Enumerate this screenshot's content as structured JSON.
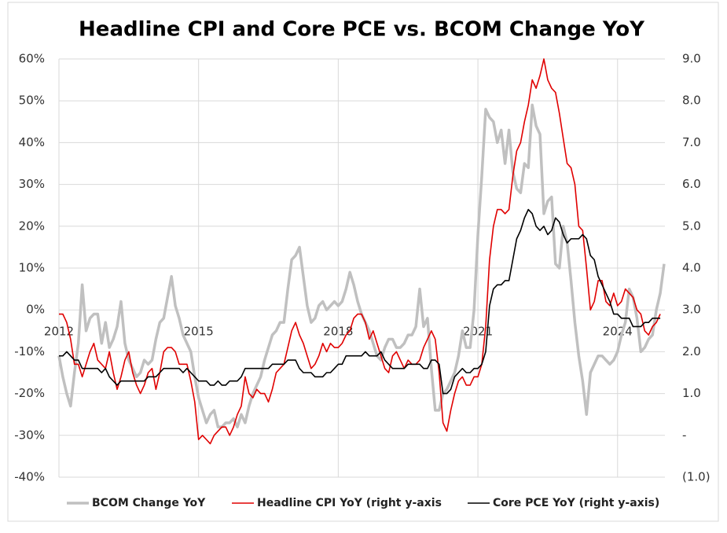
{
  "chart_data": {
    "type": "line",
    "title": "Headline CPI and Core PCE vs. BCOM Change YoY",
    "x": [
      2012,
      2012.083,
      2012.167,
      2012.25,
      2012.333,
      2012.417,
      2012.5,
      2012.583,
      2012.667,
      2012.75,
      2012.833,
      2012.917,
      2013,
      2013.083,
      2013.167,
      2013.25,
      2013.333,
      2013.417,
      2013.5,
      2013.583,
      2013.667,
      2013.75,
      2013.833,
      2013.917,
      2014,
      2014.083,
      2014.167,
      2014.25,
      2014.333,
      2014.417,
      2014.5,
      2014.583,
      2014.667,
      2014.75,
      2014.833,
      2014.917,
      2015,
      2015.083,
      2015.167,
      2015.25,
      2015.333,
      2015.417,
      2015.5,
      2015.583,
      2015.667,
      2015.75,
      2015.833,
      2015.917,
      2016,
      2016.083,
      2016.167,
      2016.25,
      2016.333,
      2016.417,
      2016.5,
      2016.583,
      2016.667,
      2016.75,
      2016.833,
      2016.917,
      2017,
      2017.083,
      2017.167,
      2017.25,
      2017.333,
      2017.417,
      2017.5,
      2017.583,
      2017.667,
      2017.75,
      2017.833,
      2017.917,
      2018,
      2018.083,
      2018.167,
      2018.25,
      2018.333,
      2018.417,
      2018.5,
      2018.583,
      2018.667,
      2018.75,
      2018.833,
      2018.917,
      2019,
      2019.083,
      2019.167,
      2019.25,
      2019.333,
      2019.417,
      2019.5,
      2019.583,
      2019.667,
      2019.75,
      2019.833,
      2019.917,
      2020,
      2020.083,
      2020.167,
      2020.25,
      2020.333,
      2020.417,
      2020.5,
      2020.583,
      2020.667,
      2020.75,
      2020.833,
      2020.917,
      2021,
      2021.083,
      2021.167,
      2021.25,
      2021.333,
      2021.417,
      2021.5,
      2021.583,
      2021.667,
      2021.75,
      2021.833,
      2021.917,
      2022,
      2022.083,
      2022.167,
      2022.25,
      2022.333,
      2022.417,
      2022.5,
      2022.583,
      2022.667,
      2022.75,
      2022.833,
      2022.917,
      2023,
      2023.083,
      2023.167,
      2023.25,
      2023.333,
      2023.417,
      2023.5,
      2023.583,
      2023.667,
      2023.75,
      2023.833,
      2023.917,
      2024,
      2024.083,
      2024.167,
      2024.25,
      2024.333,
      2024.417,
      2024.5,
      2024.583,
      2024.667,
      2024.75,
      2024.833,
      2024.917,
      2025
    ],
    "series": [
      {
        "name": "BCOM Change YoY",
        "color": "#c0c0c0",
        "values": [
          -11,
          -16,
          -20,
          -23,
          -15,
          -8,
          6,
          -5,
          -2,
          -1,
          -1,
          -8,
          -3,
          -9,
          -7,
          -4,
          2,
          -8,
          -12,
          -14,
          -16,
          -15,
          -12,
          -13,
          -12,
          -7,
          -3,
          -2,
          3,
          8,
          1,
          -2,
          -6,
          -8,
          -10,
          -16,
          -21,
          -24,
          -27,
          -25,
          -24,
          -28,
          -28,
          -27,
          -27,
          -26,
          -28,
          -25,
          -27,
          -23,
          -20,
          -18,
          -16,
          -12,
          -9,
          -6,
          -5,
          -3,
          -3,
          5,
          12,
          13,
          15,
          8,
          1,
          -3,
          -2,
          1,
          2,
          0,
          1,
          2,
          1,
          2,
          5,
          9,
          6,
          2,
          -1,
          -3,
          -5,
          -8,
          -11,
          -12,
          -9,
          -7,
          -7,
          -9,
          -9,
          -8,
          -6,
          -6,
          -4,
          5,
          -4,
          -2,
          -14,
          -24,
          -24,
          -20,
          -19,
          -17,
          -15,
          -11,
          -5,
          -9,
          -9,
          0,
          18,
          32,
          48,
          46,
          45,
          40,
          43,
          35,
          43,
          33,
          29,
          28,
          35,
          34,
          49,
          44,
          42,
          23,
          26,
          27,
          11,
          10,
          20,
          16,
          7,
          -3,
          -11,
          -17,
          -25,
          -15,
          -13,
          -11,
          -11,
          -12,
          -13,
          -12,
          -10,
          -6,
          -3,
          5,
          3,
          -2,
          -10,
          -9,
          -7,
          -6,
          0,
          4,
          11
        ]
      },
      {
        "name": "Headline CPI YoY (right y-axis",
        "color": "#e00000",
        "axis": "y2",
        "values": [
          2.9,
          2.9,
          2.7,
          2.3,
          1.7,
          1.7,
          1.4,
          1.7,
          2.0,
          2.2,
          1.8,
          1.7,
          1.6,
          2.0,
          1.5,
          1.1,
          1.4,
          1.8,
          2.0,
          1.5,
          1.2,
          1.0,
          1.2,
          1.5,
          1.6,
          1.1,
          1.5,
          2.0,
          2.1,
          2.1,
          2.0,
          1.7,
          1.7,
          1.7,
          1.3,
          0.8,
          -0.1,
          0.0,
          -0.1,
          -0.2,
          0.0,
          0.1,
          0.2,
          0.2,
          0.0,
          0.2,
          0.5,
          0.7,
          1.4,
          1.0,
          0.9,
          1.1,
          1.0,
          1.0,
          0.8,
          1.1,
          1.5,
          1.6,
          1.7,
          2.1,
          2.5,
          2.7,
          2.4,
          2.2,
          1.9,
          1.6,
          1.7,
          1.9,
          2.2,
          2.0,
          2.2,
          2.1,
          2.1,
          2.2,
          2.4,
          2.5,
          2.8,
          2.9,
          2.9,
          2.7,
          2.3,
          2.5,
          2.2,
          1.9,
          1.6,
          1.5,
          1.9,
          2.0,
          1.8,
          1.6,
          1.8,
          1.7,
          1.7,
          1.8,
          2.1,
          2.3,
          2.5,
          2.3,
          1.5,
          0.3,
          0.1,
          0.6,
          1.0,
          1.3,
          1.4,
          1.2,
          1.2,
          1.4,
          1.4,
          1.7,
          2.6,
          4.2,
          5.0,
          5.4,
          5.4,
          5.3,
          5.4,
          6.2,
          6.8,
          7.0,
          7.5,
          7.9,
          8.5,
          8.3,
          8.6,
          9.0,
          8.5,
          8.3,
          8.2,
          7.7,
          7.1,
          6.5,
          6.4,
          6.0,
          5.0,
          4.9,
          4.0,
          3.0,
          3.2,
          3.7,
          3.7,
          3.2,
          3.1,
          3.4,
          3.1,
          3.2,
          3.5,
          3.4,
          3.3,
          3.0,
          2.9,
          2.5,
          2.4,
          2.6,
          2.7,
          2.9,
          null
        ]
      },
      {
        "name": "Core PCE YoY (right y-axis)",
        "color": "#000000",
        "axis": "y2",
        "values": [
          1.9,
          1.9,
          2.0,
          1.9,
          1.8,
          1.8,
          1.6,
          1.6,
          1.6,
          1.6,
          1.6,
          1.5,
          1.6,
          1.4,
          1.3,
          1.2,
          1.3,
          1.3,
          1.3,
          1.3,
          1.3,
          1.3,
          1.3,
          1.4,
          1.4,
          1.4,
          1.5,
          1.6,
          1.6,
          1.6,
          1.6,
          1.6,
          1.5,
          1.6,
          1.5,
          1.4,
          1.3,
          1.3,
          1.3,
          1.2,
          1.2,
          1.3,
          1.2,
          1.2,
          1.3,
          1.3,
          1.3,
          1.4,
          1.6,
          1.6,
          1.6,
          1.6,
          1.6,
          1.6,
          1.6,
          1.7,
          1.7,
          1.7,
          1.7,
          1.8,
          1.8,
          1.8,
          1.6,
          1.5,
          1.5,
          1.5,
          1.4,
          1.4,
          1.4,
          1.5,
          1.5,
          1.6,
          1.7,
          1.7,
          1.9,
          1.9,
          1.9,
          1.9,
          1.9,
          2.0,
          1.9,
          1.9,
          1.9,
          2.0,
          1.8,
          1.7,
          1.6,
          1.6,
          1.6,
          1.6,
          1.7,
          1.7,
          1.7,
          1.7,
          1.6,
          1.6,
          1.8,
          1.8,
          1.7,
          1.0,
          1.0,
          1.1,
          1.4,
          1.5,
          1.6,
          1.5,
          1.5,
          1.6,
          1.6,
          1.7,
          2.0,
          3.1,
          3.5,
          3.6,
          3.6,
          3.7,
          3.7,
          4.2,
          4.7,
          4.9,
          5.2,
          5.4,
          5.3,
          5.0,
          4.9,
          5.0,
          4.8,
          4.9,
          5.2,
          5.1,
          4.8,
          4.6,
          4.7,
          4.7,
          4.7,
          4.8,
          4.7,
          4.3,
          4.2,
          3.8,
          3.6,
          3.4,
          3.2,
          2.9,
          2.9,
          2.8,
          2.8,
          2.8,
          2.6,
          2.6,
          2.6,
          2.7,
          2.7,
          2.8,
          2.8,
          2.8,
          null
        ]
      }
    ],
    "xlim": [
      2012,
      2025
    ],
    "xticks": [
      2012,
      2015,
      2018,
      2021,
      2024
    ],
    "ylim": [
      -40,
      60
    ],
    "yticks": [
      {
        "value": -40,
        "label": "-40%"
      },
      {
        "value": -30,
        "label": "-30%"
      },
      {
        "value": -20,
        "label": "-20%"
      },
      {
        "value": -10,
        "label": "-10%"
      },
      {
        "value": 0,
        "label": "0%"
      },
      {
        "value": 10,
        "label": "10%"
      },
      {
        "value": 20,
        "label": "20%"
      },
      {
        "value": 30,
        "label": "30%"
      },
      {
        "value": 40,
        "label": "40%"
      },
      {
        "value": 50,
        "label": "50%"
      },
      {
        "value": 60,
        "label": "60%"
      }
    ],
    "y2lim": [
      -1,
      9
    ],
    "y2ticks": [
      {
        "value": -1,
        "label": "(1.0)"
      },
      {
        "value": 0,
        "label": "-"
      },
      {
        "value": 1,
        "label": "1.0"
      },
      {
        "value": 2,
        "label": "2.0"
      },
      {
        "value": 3,
        "label": "3.0"
      },
      {
        "value": 4,
        "label": "4.0"
      },
      {
        "value": 5,
        "label": "5.0"
      },
      {
        "value": 6,
        "label": "6.0"
      },
      {
        "value": 7,
        "label": "7.0"
      },
      {
        "value": 8,
        "label": "8.0"
      },
      {
        "value": 9,
        "label": "9.0"
      }
    ],
    "grid": true,
    "legend": "bottom"
  }
}
